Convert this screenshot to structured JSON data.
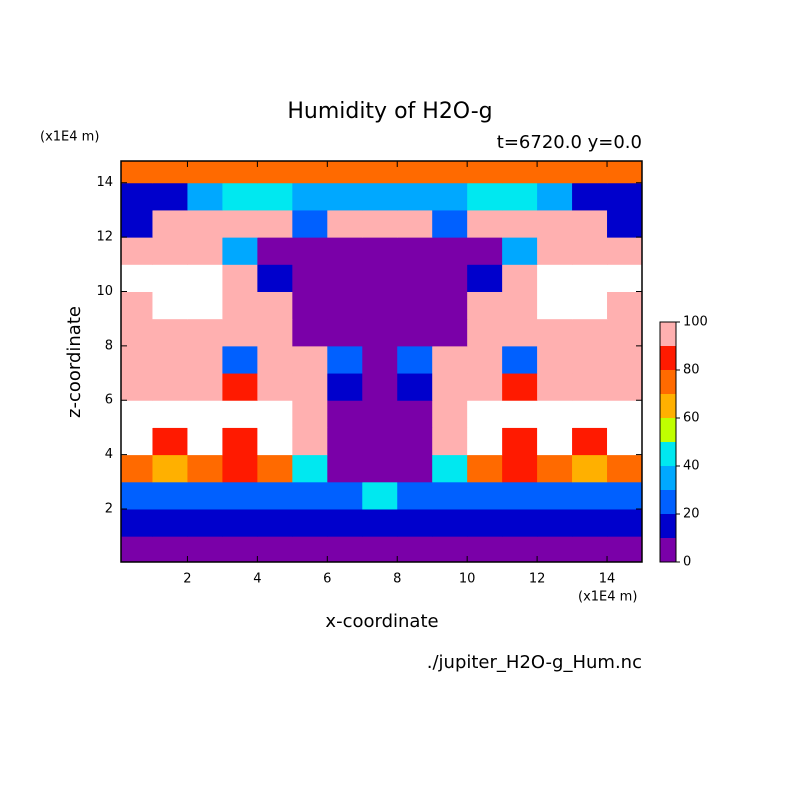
{
  "chart_data": {
    "type": "contour",
    "title": "Humidity of H2O-g",
    "subtitle": "t=6720.0 y=0.0",
    "x_label": "x-coordinate",
    "y_label": "z-coordinate",
    "x_unit": "(x1E4 m)",
    "y_unit": "(x1E4 m)",
    "source": "./jupiter_H2O-g_Hum.nc",
    "xlim": [
      0.1,
      15.0
    ],
    "ylim": [
      0.05,
      14.8
    ],
    "xticks": [
      2,
      4,
      6,
      8,
      10,
      12,
      14
    ],
    "yticks": [
      2,
      4,
      6,
      8,
      10,
      12,
      14
    ],
    "x": [
      0.5,
      1.5,
      2.5,
      3.5,
      4.5,
      5.5,
      6.5,
      7.5,
      8.5,
      9.5,
      10.5,
      11.5,
      12.5,
      13.5,
      14.5
    ],
    "z": [
      0.5,
      1.5,
      2.5,
      3.5,
      4.5,
      5.5,
      6.5,
      7.5,
      8.5,
      9.5,
      10.5,
      11.5,
      12.5,
      13.5,
      14.5
    ],
    "values": [
      [
        5,
        5,
        5,
        5,
        5,
        5,
        5,
        5,
        5,
        5,
        5,
        5,
        5,
        5,
        5
      ],
      [
        15,
        15,
        15,
        15,
        15,
        15,
        15,
        15,
        15,
        15,
        15,
        15,
        15,
        15,
        15
      ],
      [
        25,
        25,
        25,
        25,
        25,
        25,
        25,
        45,
        25,
        25,
        25,
        25,
        25,
        25,
        25
      ],
      [
        75,
        65,
        75,
        85,
        75,
        45,
        5,
        5,
        5,
        45,
        75,
        85,
        75,
        65,
        75
      ],
      [
        105,
        85,
        105,
        85,
        105,
        95,
        5,
        5,
        5,
        95,
        105,
        85,
        105,
        85,
        105
      ],
      [
        105,
        105,
        105,
        105,
        105,
        95,
        5,
        5,
        5,
        95,
        105,
        105,
        105,
        105,
        105
      ],
      [
        95,
        95,
        95,
        85,
        95,
        95,
        15,
        5,
        15,
        95,
        95,
        85,
        95,
        95,
        95
      ],
      [
        95,
        95,
        95,
        25,
        95,
        95,
        25,
        5,
        25,
        95,
        95,
        25,
        95,
        95,
        95
      ],
      [
        95,
        95,
        95,
        95,
        95,
        5,
        5,
        5,
        5,
        5,
        95,
        95,
        95,
        95,
        95
      ],
      [
        95,
        105,
        105,
        95,
        95,
        5,
        5,
        5,
        5,
        5,
        95,
        95,
        105,
        105,
        95
      ],
      [
        105,
        105,
        105,
        95,
        15,
        5,
        5,
        5,
        5,
        5,
        15,
        95,
        105,
        105,
        105
      ],
      [
        95,
        95,
        95,
        35,
        5,
        5,
        5,
        5,
        5,
        5,
        5,
        35,
        95,
        95,
        95
      ],
      [
        15,
        95,
        95,
        95,
        95,
        25,
        95,
        95,
        95,
        25,
        95,
        95,
        95,
        95,
        15
      ],
      [
        15,
        15,
        35,
        45,
        45,
        35,
        35,
        35,
        35,
        35,
        45,
        45,
        35,
        15,
        15
      ],
      [
        75,
        75,
        75,
        75,
        75,
        75,
        75,
        75,
        75,
        75,
        75,
        75,
        75,
        75,
        75
      ]
    ],
    "levels": [
      0,
      10,
      20,
      30,
      40,
      50,
      60,
      70,
      80,
      90,
      100
    ],
    "colors": [
      "#7a00a8",
      "#0000cc",
      "#0060ff",
      "#00a8ff",
      "#00e8f0",
      "#c0ff00",
      "#ffb000",
      "#ff6a00",
      "#ff1a00",
      "#ffb0b0"
    ],
    "over_color": "#ffffff",
    "cbar_ticks": [
      0,
      20,
      40,
      60,
      80,
      100
    ]
  }
}
